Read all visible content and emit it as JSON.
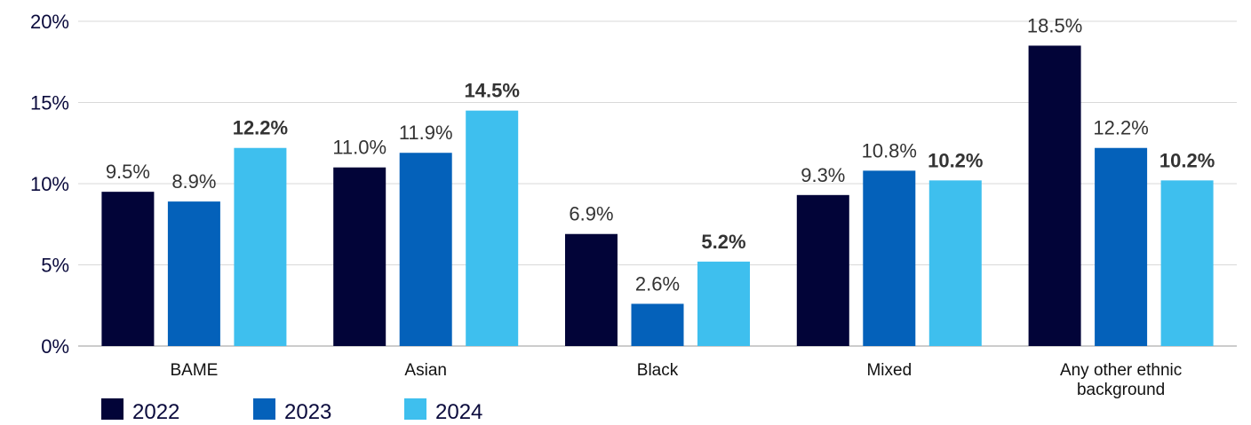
{
  "chart_data": {
    "type": "bar",
    "categories": [
      "BAME",
      "Asian",
      "Black",
      "Mixed",
      "Any other ethnic background"
    ],
    "category_lines": [
      [
        "BAME"
      ],
      [
        "Asian"
      ],
      [
        "Black"
      ],
      [
        "Mixed"
      ],
      [
        "Any other ethnic",
        "background"
      ]
    ],
    "series": [
      {
        "name": "2022",
        "color": "#020438",
        "values": [
          9.5,
          11.0,
          6.9,
          9.3,
          18.5
        ],
        "labels": [
          "9.5%",
          "11.0%",
          "6.9%",
          "9.3%",
          "18.5%"
        ],
        "bold": false
      },
      {
        "name": "2023",
        "color": "#0461BA",
        "values": [
          8.9,
          11.9,
          2.6,
          10.8,
          12.2
        ],
        "labels": [
          "8.9%",
          "11.9%",
          "2.6%",
          "10.8%",
          "12.2%"
        ],
        "bold": false
      },
      {
        "name": "2024",
        "color": "#3EBFEE",
        "values": [
          12.2,
          14.5,
          5.2,
          10.2,
          10.2
        ],
        "labels": [
          "12.2%",
          "14.5%",
          "5.2%",
          "10.2%",
          "10.2%"
        ],
        "bold": true
      }
    ],
    "ylim": [
      0,
      20
    ],
    "yticks": [
      "0%",
      "5%",
      "10%",
      "15%",
      "20%"
    ],
    "ytick_values": [
      0,
      5,
      10,
      15,
      20
    ],
    "grid": true,
    "legend": "bottom-left"
  }
}
